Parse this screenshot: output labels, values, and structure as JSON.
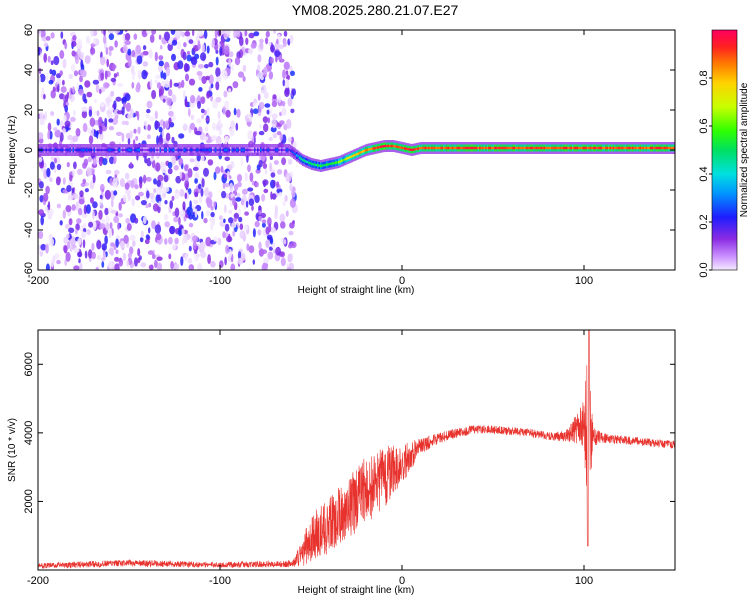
{
  "title": "YM08.2025.280.21.07.E27",
  "chart_data": [
    {
      "type": "heatmap",
      "xlabel": "Height of straight line (km)",
      "ylabel": "Frequency (Hz)",
      "xlim": [
        -200,
        150
      ],
      "ylim": [
        -60,
        60
      ],
      "xticks": [
        -200,
        -100,
        0,
        100
      ],
      "xtick_labels": [
        "-200",
        "-100",
        "0",
        "100"
      ],
      "yticks": [
        -60,
        -40,
        -20,
        0,
        20,
        40,
        60
      ],
      "ytick_labels": [
        "-60",
        "-40",
        "-20",
        "0",
        "20",
        "40",
        "60"
      ],
      "noise_region_x": [
        -200,
        -62
      ],
      "ridge": {
        "x": [
          -200,
          -62,
          -55,
          -50,
          -45,
          -40,
          -35,
          -30,
          -25,
          -20,
          -15,
          -10,
          -5,
          0,
          5,
          10,
          150
        ],
        "y": [
          0,
          0,
          -5,
          -7,
          -8,
          -7,
          -6,
          -4,
          -2,
          0,
          1,
          2,
          2,
          1,
          0,
          1,
          1
        ],
        "amp": [
          0.2,
          0.2,
          0.45,
          0.5,
          0.5,
          0.55,
          0.6,
          0.7,
          0.8,
          0.85,
          0.9,
          0.95,
          0.9,
          0.9,
          0.95,
          0.9,
          0.9
        ]
      }
    },
    {
      "type": "colorbar",
      "label": "Normalized spectral amplitude",
      "range": [
        0,
        1
      ],
      "ticks": [
        0,
        0.2,
        0.4,
        0.6,
        0.8
      ],
      "tick_labels": [
        "0.0",
        "0.2",
        "0.4",
        "0.6",
        "0.8"
      ]
    },
    {
      "type": "line",
      "xlabel": "Height of straight line (km)",
      "ylabel": "SNR (10 * v/v)",
      "xlim": [
        -200,
        150
      ],
      "ylim": [
        0,
        7000
      ],
      "xticks": [
        -200,
        -100,
        0,
        100
      ],
      "xtick_labels": [
        "-200",
        "-100",
        "0",
        "100"
      ],
      "yticks": [
        2000,
        4000,
        6000
      ],
      "ytick_labels": [
        "2000",
        "4000",
        "6000"
      ],
      "series": [
        {
          "name": "SNR",
          "color": "#e8322d",
          "envelope": {
            "x": [
              -200,
              -150,
              -100,
              -60,
              -55,
              -50,
              -40,
              -30,
              -20,
              -10,
              0,
              10,
              20,
              30,
              40,
              50,
              60,
              70,
              80,
              90,
              95,
              100,
              102,
              105,
              110,
              120,
              130,
              140,
              150
            ],
            "mean": [
              120,
              200,
              150,
              180,
              500,
              900,
              1300,
              1800,
              2300,
              2700,
              3100,
              3600,
              3850,
              4000,
              4100,
              4100,
              4050,
              4000,
              3900,
              3900,
              4100,
              4200,
              4000,
              3900,
              3850,
              3800,
              3750,
              3700,
              3650
            ],
            "noise": [
              80,
              100,
              80,
              100,
              400,
              700,
              800,
              900,
              1000,
              900,
              600,
              250,
              150,
              150,
              120,
              120,
              120,
              120,
              120,
              150,
              400,
              800,
              2500,
              300,
              150,
              120,
              120,
              120,
              120
            ]
          }
        }
      ]
    }
  ]
}
